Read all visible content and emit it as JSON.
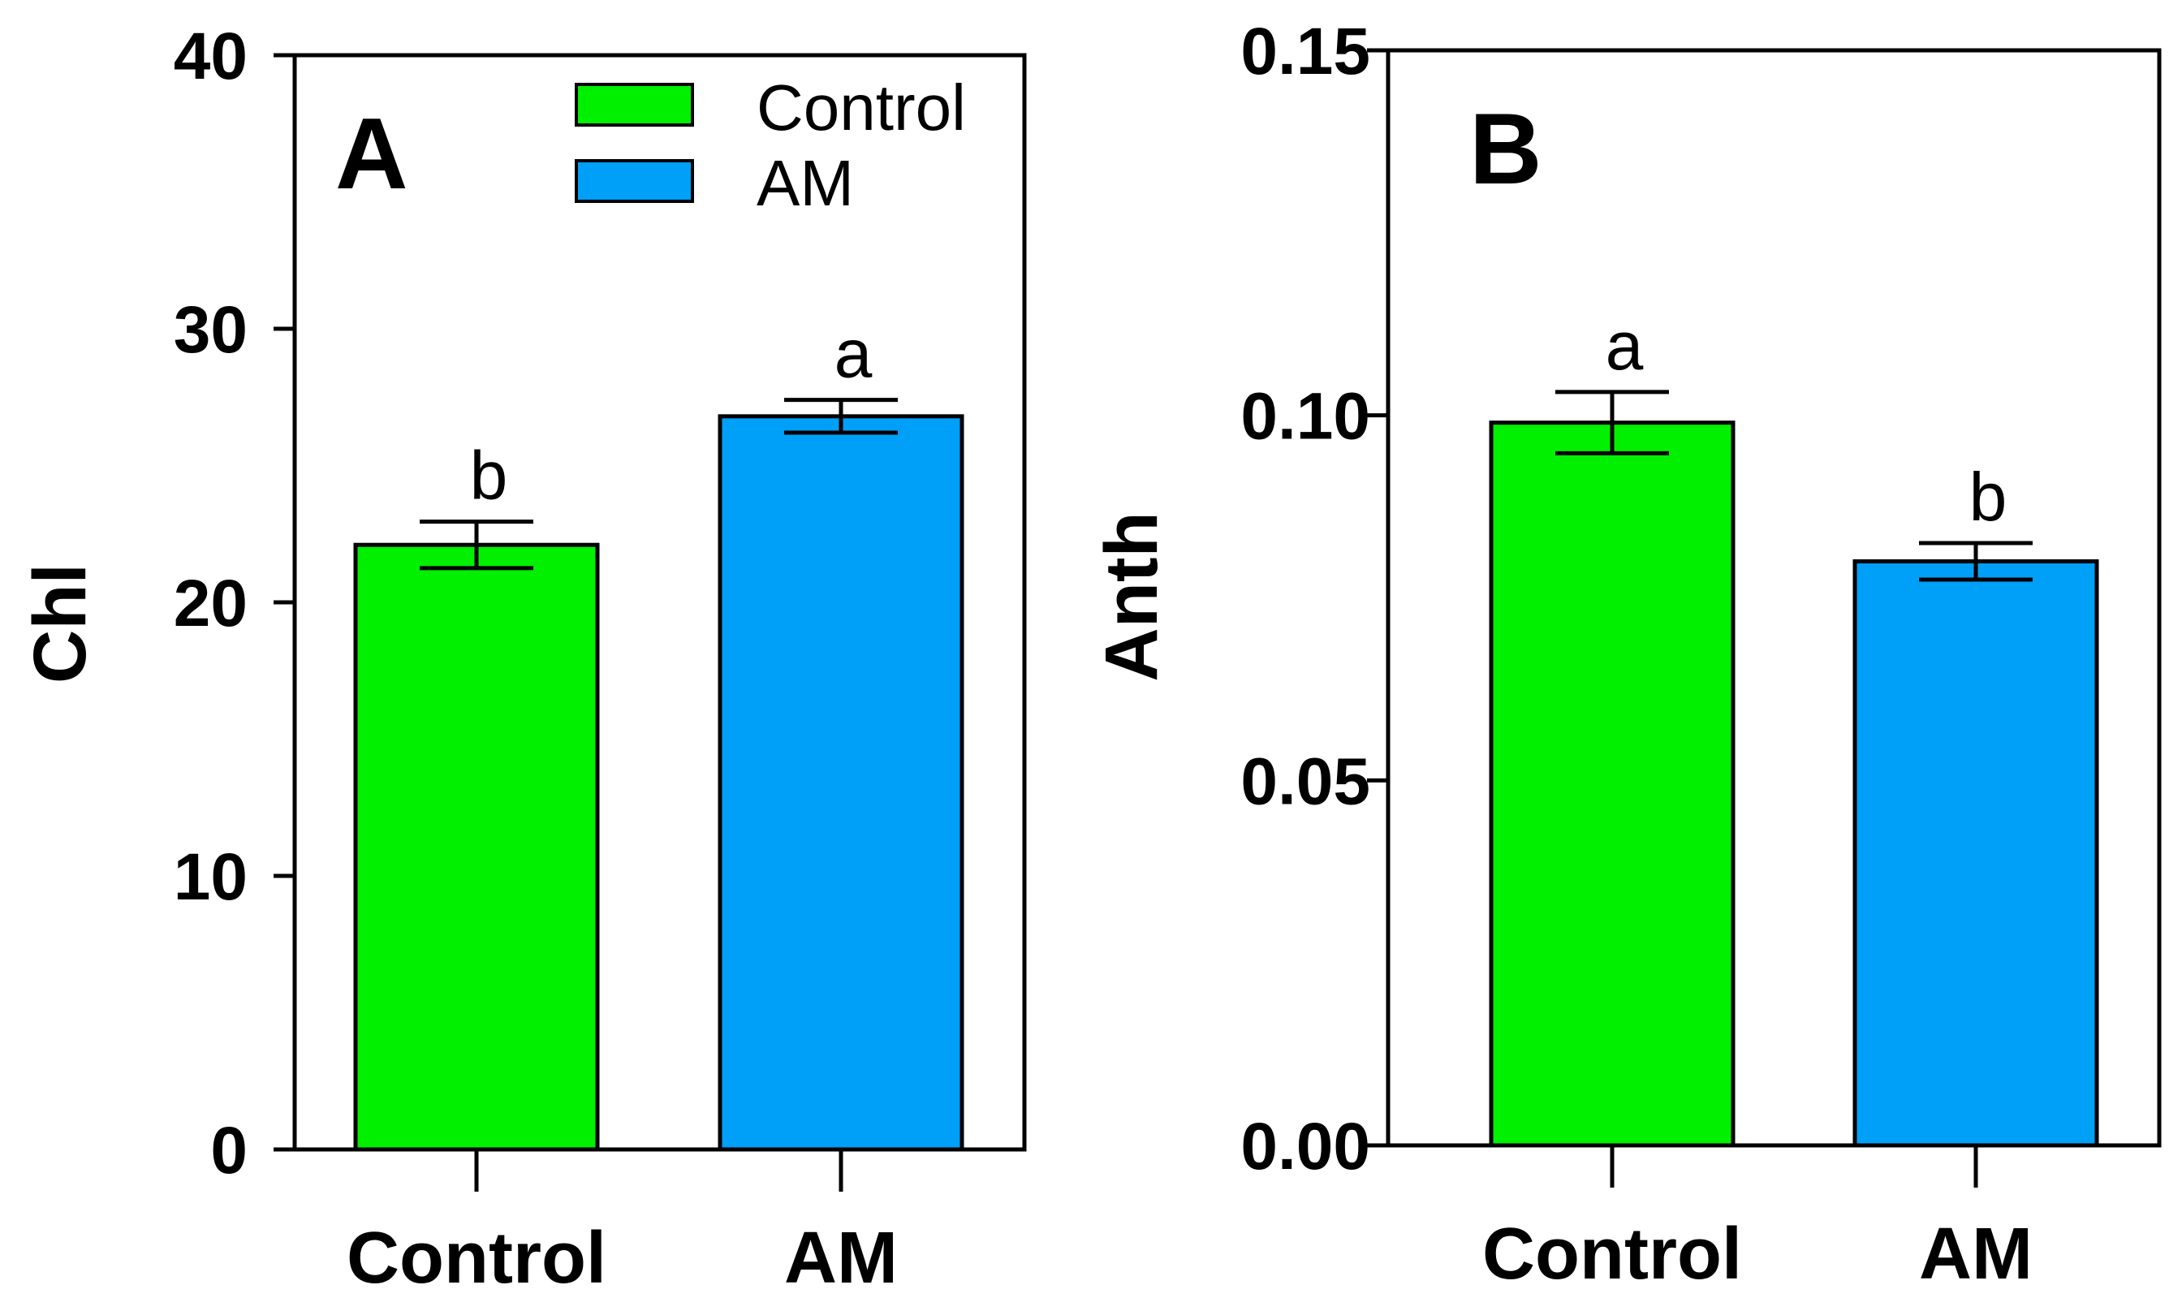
{
  "colors": {
    "control": "#00f000",
    "am": "#00a0f8",
    "axis": "#000000"
  },
  "legend": [
    {
      "label": "Control",
      "color": "#00f000"
    },
    {
      "label": "AM",
      "color": "#00a0f8"
    }
  ],
  "chart_data": [
    {
      "type": "bar",
      "panel": "A",
      "ylabel": "Chl",
      "xlabel": "",
      "ylim": [
        0,
        40
      ],
      "yticks": [
        0,
        10,
        20,
        30,
        40
      ],
      "ytick_labels": [
        "0",
        "10",
        "20",
        "30",
        "40"
      ],
      "categories": [
        "Control",
        "AM"
      ],
      "values": [
        22.1,
        26.8
      ],
      "errors": [
        0.85,
        0.6
      ],
      "significance": [
        "b",
        "a"
      ],
      "colors": [
        "#00f000",
        "#00a0f8"
      ],
      "grid": false,
      "legend_position": "top-right"
    },
    {
      "type": "bar",
      "panel": "B",
      "ylabel": "Anth",
      "xlabel": "",
      "ylim": [
        0,
        0.15
      ],
      "yticks": [
        0,
        0.05,
        0.1,
        0.15
      ],
      "ytick_labels": [
        "0.00",
        "0.05",
        "0.10",
        "0.15"
      ],
      "categories": [
        "Control",
        "AM"
      ],
      "values": [
        0.099,
        0.08
      ],
      "errors": [
        0.0042,
        0.0025
      ],
      "significance": [
        "a",
        "b"
      ],
      "colors": [
        "#00f000",
        "#00a0f8"
      ],
      "grid": false
    }
  ]
}
